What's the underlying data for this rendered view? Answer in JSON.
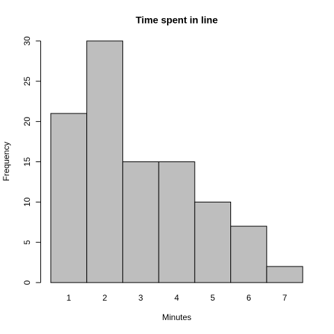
{
  "chart_data": {
    "type": "histogram",
    "title": "Time spent in line",
    "xlabel": "Minutes",
    "ylabel": "Frequency",
    "bins": [
      0.5,
      1.5,
      2.5,
      3.5,
      4.5,
      5.5,
      6.5,
      7.5
    ],
    "values": [
      21,
      30,
      15,
      15,
      10,
      7,
      2
    ],
    "color": "#bebebe",
    "edgecolor": "#000000",
    "xlim": [
      0.22,
      7.78
    ],
    "xticks": [
      1,
      2,
      3,
      4,
      5,
      6,
      7
    ],
    "ylim": [
      -1.2,
      31.2
    ],
    "yticks": [
      0,
      5,
      10,
      15,
      20,
      25,
      30
    ]
  }
}
